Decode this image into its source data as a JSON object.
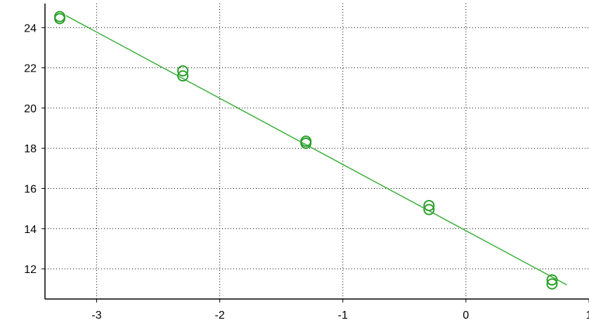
{
  "chart_data": {
    "type": "scatter",
    "title": "",
    "xlabel": "",
    "ylabel": "",
    "xlim": [
      -3.42,
      1.0
    ],
    "ylim": [
      10.5,
      25.2
    ],
    "x_ticks": [
      {
        "value": -3,
        "label": "-3"
      },
      {
        "value": -2,
        "label": "-2"
      },
      {
        "value": -1,
        "label": "-1"
      },
      {
        "value": 0,
        "label": "0"
      },
      {
        "value": 1,
        "label": "1"
      }
    ],
    "y_ticks": [
      {
        "value": 12,
        "label": "12"
      },
      {
        "value": 14,
        "label": "14"
      },
      {
        "value": 16,
        "label": "16"
      },
      {
        "value": 18,
        "label": "18"
      },
      {
        "value": 20,
        "label": "20"
      },
      {
        "value": 22,
        "label": "22"
      },
      {
        "value": 24,
        "label": "24"
      }
    ],
    "grid": true,
    "legend": "none",
    "series": [
      {
        "color": "#2ca02c",
        "points": [
          {
            "x": -3.3,
            "y": 24.55
          },
          {
            "x": -3.3,
            "y": 24.45
          },
          {
            "x": -2.3,
            "y": 21.85
          },
          {
            "x": -2.3,
            "y": 21.6
          },
          {
            "x": -1.3,
            "y": 18.35
          },
          {
            "x": -1.3,
            "y": 18.25
          },
          {
            "x": -0.3,
            "y": 15.15
          },
          {
            "x": -0.3,
            "y": 14.95
          },
          {
            "x": 0.7,
            "y": 11.45
          },
          {
            "x": 0.7,
            "y": 11.25
          }
        ]
      }
    ],
    "fit_line": {
      "color": "#3cb03c",
      "x": [
        -3.25,
        0.82
      ],
      "y": [
        24.6,
        11.2
      ]
    }
  }
}
